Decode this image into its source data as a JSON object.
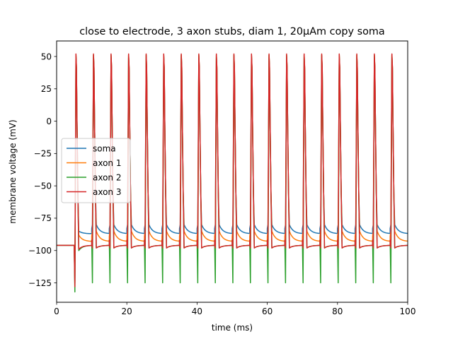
{
  "chart_data": {
    "type": "line",
    "title": "close to electrode, 3 axon stubs, diam 1, 20µAm copy soma",
    "xlabel": "time (ms)",
    "ylabel": "membrane voltage (mV)",
    "xlim": [
      0,
      100
    ],
    "ylim": [
      -140,
      62
    ],
    "xticks": [
      0,
      20,
      40,
      60,
      80,
      100
    ],
    "yticks": [
      -125,
      -100,
      -75,
      -50,
      -25,
      0,
      25,
      50
    ],
    "grid": false,
    "legend": "center-left",
    "stimulus_onset_ms": 5,
    "resting_potential_mv": -96,
    "spike_times_ms": [
      5.2,
      10.2,
      15.2,
      20.2,
      25.2,
      30.2,
      35.2,
      40.2,
      45.2,
      50.2,
      55.2,
      60.2,
      65.2,
      70.2,
      75.2,
      80.2,
      85.2,
      90.2,
      95.2
    ],
    "series": [
      {
        "name": "soma",
        "color": "#1f77b4",
        "peak": 49,
        "first_trough": -125,
        "trough": -80,
        "late_min": -87,
        "first_min": -85,
        "stub_dip": -80
      },
      {
        "name": "axon 1",
        "color": "#ff7f0e",
        "peak": 51,
        "first_trough": -125,
        "trough": -85,
        "late_min": -93,
        "first_min": -88,
        "stub_dip": -85
      },
      {
        "name": "axon 2",
        "color": "#2ca02c",
        "peak": 51,
        "first_trough": -132,
        "trough": -98,
        "late_min": -96,
        "first_min": -100,
        "stub_dip": -125
      },
      {
        "name": "axon 3",
        "color": "#d62728",
        "peak": 52,
        "first_trough": -128,
        "trough": -98,
        "late_min": -96,
        "first_min": -99,
        "stub_dip": -98
      }
    ]
  }
}
